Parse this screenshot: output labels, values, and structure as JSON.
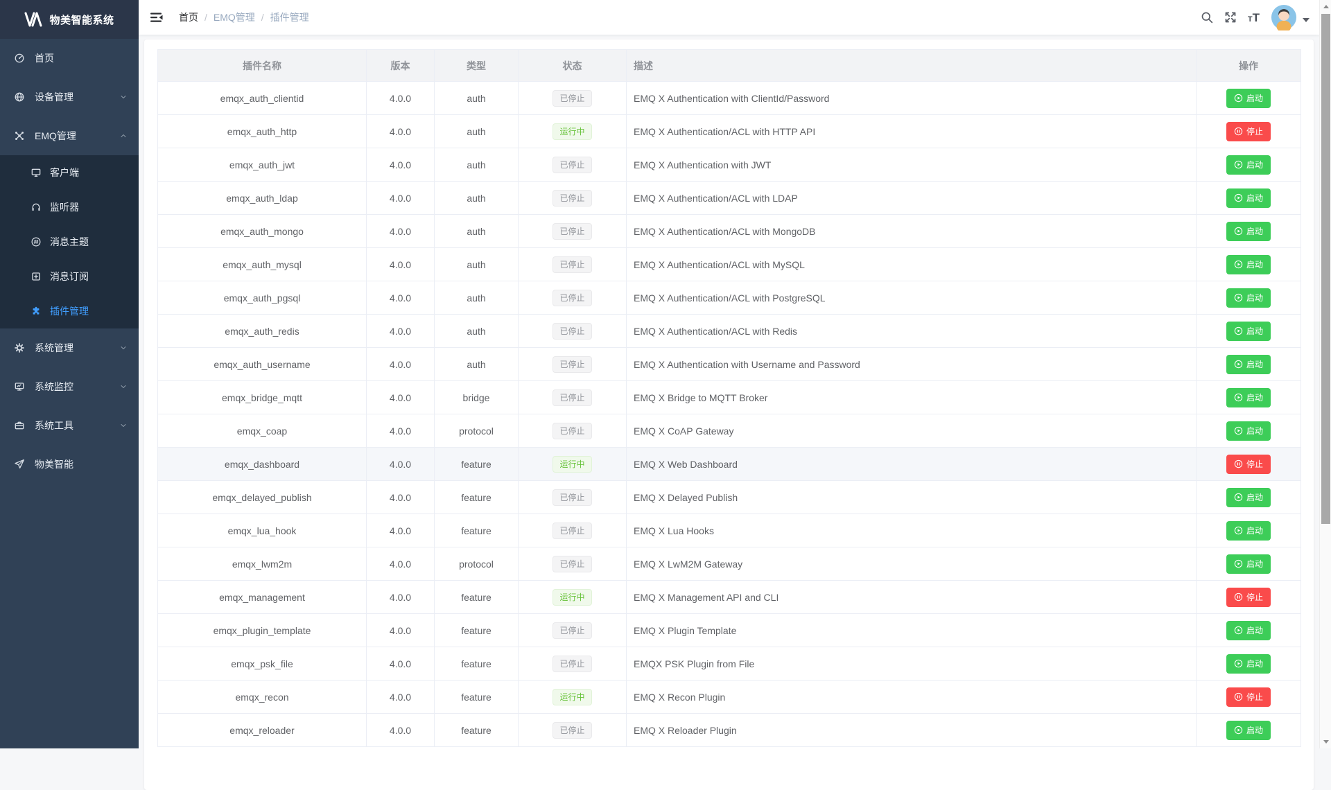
{
  "app": {
    "title": "物美智能系统",
    "logo_icon": "brand-monogram-icon"
  },
  "colors": {
    "accent": "#409eff",
    "sidebar_bg": "#304156",
    "submenu_bg": "#1f2d3d",
    "running_text": "#67c23a",
    "running_bg": "#f0f9eb",
    "stopped_text": "#909399",
    "stopped_bg": "#f4f4f5",
    "start_button": "#3dcd58",
    "stop_button": "#fa4b4b"
  },
  "sidebar": {
    "items": [
      {
        "id": "home",
        "label": "首页",
        "icon": "dashboard-icon"
      },
      {
        "id": "device",
        "label": "设备管理",
        "icon": "device-globe-icon",
        "chevron": "down"
      },
      {
        "id": "emq",
        "label": "EMQ管理",
        "icon": "emq-node-icon",
        "chevron": "up",
        "expanded": true,
        "children": [
          {
            "id": "client",
            "label": "客户端",
            "icon": "client-monitor-icon"
          },
          {
            "id": "listener",
            "label": "监听器",
            "icon": "listener-headset-icon"
          },
          {
            "id": "topic",
            "label": "消息主题",
            "icon": "topic-hash-icon"
          },
          {
            "id": "subscription",
            "label": "消息订阅",
            "icon": "subscription-plus-icon"
          },
          {
            "id": "plugin",
            "label": "插件管理",
            "icon": "plugin-puzzle-icon",
            "active": true
          }
        ]
      },
      {
        "id": "system",
        "label": "系统管理",
        "icon": "gear-icon",
        "chevron": "down"
      },
      {
        "id": "monitor",
        "label": "系统监控",
        "icon": "monitor-chart-icon",
        "chevron": "down"
      },
      {
        "id": "tools",
        "label": "系统工具",
        "icon": "toolbox-icon",
        "chevron": "down"
      },
      {
        "id": "wumei",
        "label": "物美智能",
        "icon": "paper-plane-icon"
      }
    ]
  },
  "navbar": {
    "hamburger_icon": "hamburger-icon",
    "breadcrumb": [
      "首页",
      "EMQ管理",
      "插件管理"
    ],
    "separator": "/",
    "right_icons": [
      "search-icon",
      "fullscreen-icon",
      "font-size-icon",
      "user-avatar",
      "caret-down-icon"
    ],
    "tt_small": "T",
    "tt_big": "T"
  },
  "table": {
    "headers": [
      "插件名称",
      "版本",
      "类型",
      "状态",
      "描述",
      "操作"
    ],
    "status_labels": {
      "running": "运行中",
      "stopped": "已停止"
    },
    "action_labels": {
      "start": "启动",
      "stop": "停止"
    },
    "rows": [
      {
        "name": "emqx_auth_clientid",
        "version": "4.0.0",
        "type": "auth",
        "status": "stopped",
        "description": "EMQ X Authentication with ClientId/Password"
      },
      {
        "name": "emqx_auth_http",
        "version": "4.0.0",
        "type": "auth",
        "status": "running",
        "description": "EMQ X Authentication/ACL with HTTP API"
      },
      {
        "name": "emqx_auth_jwt",
        "version": "4.0.0",
        "type": "auth",
        "status": "stopped",
        "description": "EMQ X Authentication with JWT"
      },
      {
        "name": "emqx_auth_ldap",
        "version": "4.0.0",
        "type": "auth",
        "status": "stopped",
        "description": "EMQ X Authentication/ACL with LDAP"
      },
      {
        "name": "emqx_auth_mongo",
        "version": "4.0.0",
        "type": "auth",
        "status": "stopped",
        "description": "EMQ X Authentication/ACL with MongoDB"
      },
      {
        "name": "emqx_auth_mysql",
        "version": "4.0.0",
        "type": "auth",
        "status": "stopped",
        "description": "EMQ X Authentication/ACL with MySQL"
      },
      {
        "name": "emqx_auth_pgsql",
        "version": "4.0.0",
        "type": "auth",
        "status": "stopped",
        "description": "EMQ X Authentication/ACL with PostgreSQL"
      },
      {
        "name": "emqx_auth_redis",
        "version": "4.0.0",
        "type": "auth",
        "status": "stopped",
        "description": "EMQ X Authentication/ACL with Redis"
      },
      {
        "name": "emqx_auth_username",
        "version": "4.0.0",
        "type": "auth",
        "status": "stopped",
        "description": "EMQ X Authentication with Username and Password"
      },
      {
        "name": "emqx_bridge_mqtt",
        "version": "4.0.0",
        "type": "bridge",
        "status": "stopped",
        "description": "EMQ X Bridge to MQTT Broker"
      },
      {
        "name": "emqx_coap",
        "version": "4.0.0",
        "type": "protocol",
        "status": "stopped",
        "description": "EMQ X CoAP Gateway"
      },
      {
        "name": "emqx_dashboard",
        "version": "4.0.0",
        "type": "feature",
        "status": "running",
        "description": "EMQ X Web Dashboard",
        "highlight": true
      },
      {
        "name": "emqx_delayed_publish",
        "version": "4.0.0",
        "type": "feature",
        "status": "stopped",
        "description": "EMQ X Delayed Publish"
      },
      {
        "name": "emqx_lua_hook",
        "version": "4.0.0",
        "type": "feature",
        "status": "stopped",
        "description": "EMQ X Lua Hooks"
      },
      {
        "name": "emqx_lwm2m",
        "version": "4.0.0",
        "type": "protocol",
        "status": "stopped",
        "description": "EMQ X LwM2M Gateway"
      },
      {
        "name": "emqx_management",
        "version": "4.0.0",
        "type": "feature",
        "status": "running",
        "description": "EMQ X Management API and CLI"
      },
      {
        "name": "emqx_plugin_template",
        "version": "4.0.0",
        "type": "feature",
        "status": "stopped",
        "description": "EMQ X Plugin Template"
      },
      {
        "name": "emqx_psk_file",
        "version": "4.0.0",
        "type": "feature",
        "status": "stopped",
        "description": "EMQX PSK Plugin from File"
      },
      {
        "name": "emqx_recon",
        "version": "4.0.0",
        "type": "feature",
        "status": "running",
        "description": "EMQ X Recon Plugin"
      },
      {
        "name": "emqx_reloader",
        "version": "4.0.0",
        "type": "feature",
        "status": "stopped",
        "description": "EMQ X Reloader Plugin"
      }
    ]
  }
}
